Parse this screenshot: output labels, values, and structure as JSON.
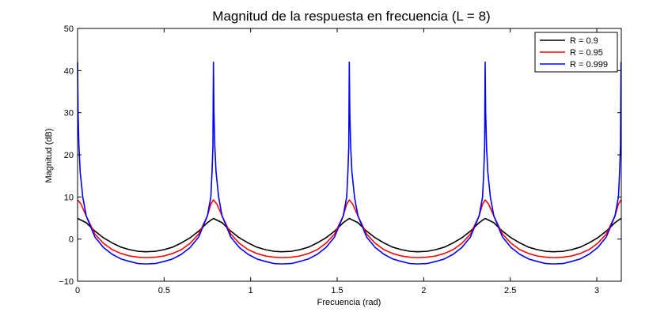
{
  "chart_data": {
    "type": "line",
    "title": "Magnitud de la respuesta en frecuencia (L = 8)",
    "xlabel": "Frecuencia (rad)",
    "ylabel": "Magnitud (dB)",
    "xlim": [
      0,
      3.1416
    ],
    "ylim": [
      -10,
      50
    ],
    "x_ticks": [
      0,
      0.5,
      1,
      1.5,
      2,
      2.5,
      3
    ],
    "x_tick_labels": [
      "0",
      "0.5",
      "1",
      "1.5",
      "2",
      "2.5",
      "3"
    ],
    "y_ticks": [
      -10,
      0,
      10,
      20,
      30,
      40,
      50
    ],
    "y_tick_labels": [
      "−10",
      "0",
      "10",
      "20",
      "30",
      "40",
      "50"
    ],
    "grid": false,
    "legend_position": "top-right",
    "series": [
      {
        "name": "R = 0.9",
        "color": "#000000",
        "x": [
          0,
          0.05,
          0.1,
          0.15,
          0.2,
          0.25,
          0.3,
          0.35,
          0.393,
          0.45,
          0.5,
          0.55,
          0.6,
          0.65,
          0.7,
          0.75,
          0.785
        ],
        "y": [
          4.9,
          3.9,
          1.9,
          0.3,
          -0.9,
          -1.9,
          -2.5,
          -2.9,
          -3.0,
          -2.9,
          -2.5,
          -1.9,
          -0.9,
          0.3,
          1.9,
          3.9,
          4.9
        ]
      },
      {
        "name": "R = 0.95",
        "color": "#ff0000",
        "x": [
          0,
          0.02,
          0.05,
          0.1,
          0.15,
          0.2,
          0.25,
          0.3,
          0.35,
          0.393,
          0.45,
          0.5,
          0.55,
          0.6,
          0.65,
          0.7,
          0.75,
          0.77,
          0.785
        ],
        "y": [
          9.3,
          8.3,
          5.5,
          1.2,
          -1.0,
          -2.5,
          -3.4,
          -4.0,
          -4.3,
          -4.4,
          -4.3,
          -4.0,
          -3.4,
          -2.5,
          -1.0,
          1.2,
          5.5,
          8.3,
          9.3
        ]
      },
      {
        "name": "R = 0.999",
        "color": "#0000ff",
        "x": [
          0,
          0.003,
          0.008,
          0.015,
          0.03,
          0.05,
          0.1,
          0.15,
          0.2,
          0.25,
          0.3,
          0.35,
          0.393,
          0.45,
          0.5,
          0.55,
          0.6,
          0.65,
          0.7,
          0.75,
          0.77,
          0.777,
          0.782,
          0.785
        ],
        "y": [
          42,
          30,
          22,
          16,
          10,
          5.5,
          0.5,
          -2.0,
          -3.6,
          -4.7,
          -5.3,
          -5.8,
          -5.9,
          -5.8,
          -5.3,
          -4.7,
          -3.6,
          -2.0,
          0.5,
          5.5,
          10,
          16,
          22,
          42
        ]
      }
    ]
  }
}
